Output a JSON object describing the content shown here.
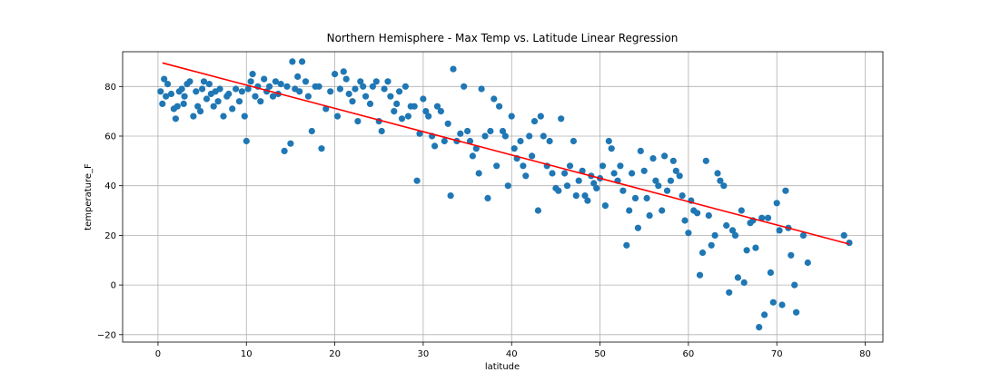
{
  "chart_data": {
    "type": "scatter",
    "title": "Northern Hemisphere - Max Temp vs. Latitude Linear Regression",
    "xlabel": "latitude",
    "ylabel": "temperature_F",
    "xlim": [
      -4,
      82
    ],
    "ylim": [
      -23,
      94
    ],
    "xticks": [
      0,
      10,
      20,
      30,
      40,
      50,
      60,
      70,
      80
    ],
    "yticks": [
      -20,
      0,
      20,
      40,
      60,
      80
    ],
    "grid": true,
    "colors": {
      "points": "#1f77b4",
      "regression": "#ff0000"
    },
    "regression_line": {
      "x": [
        0.5,
        78.2
      ],
      "y": [
        89.5,
        16.5
      ]
    },
    "series": [
      {
        "points": [
          [
            0.3,
            78
          ],
          [
            0.5,
            73
          ],
          [
            0.7,
            83
          ],
          [
            0.9,
            76
          ],
          [
            1.1,
            81
          ],
          [
            1.5,
            77
          ],
          [
            1.8,
            71
          ],
          [
            2.0,
            67
          ],
          [
            2.2,
            72
          ],
          [
            2.4,
            78
          ],
          [
            2.7,
            79
          ],
          [
            2.9,
            73
          ],
          [
            3.0,
            76
          ],
          [
            3.3,
            81
          ],
          [
            3.6,
            82
          ],
          [
            4.0,
            68
          ],
          [
            4.3,
            78
          ],
          [
            4.5,
            72
          ],
          [
            4.8,
            70
          ],
          [
            5.0,
            79
          ],
          [
            5.2,
            82
          ],
          [
            5.5,
            75
          ],
          [
            5.8,
            81
          ],
          [
            6.0,
            77
          ],
          [
            6.3,
            72
          ],
          [
            6.5,
            78
          ],
          [
            6.8,
            74
          ],
          [
            7.0,
            79
          ],
          [
            7.4,
            68
          ],
          [
            7.8,
            76
          ],
          [
            8.0,
            77
          ],
          [
            8.4,
            71
          ],
          [
            8.8,
            79
          ],
          [
            9.2,
            74
          ],
          [
            9.5,
            78
          ],
          [
            9.8,
            68
          ],
          [
            10.0,
            58
          ],
          [
            10.2,
            79
          ],
          [
            10.5,
            82
          ],
          [
            10.7,
            85
          ],
          [
            11.0,
            76
          ],
          [
            11.3,
            80
          ],
          [
            11.6,
            74
          ],
          [
            12.0,
            83
          ],
          [
            12.3,
            78
          ],
          [
            12.6,
            80
          ],
          [
            13.0,
            76
          ],
          [
            13.3,
            82
          ],
          [
            13.6,
            77
          ],
          [
            13.9,
            81
          ],
          [
            14.3,
            54
          ],
          [
            14.6,
            80
          ],
          [
            15.0,
            57
          ],
          [
            15.2,
            90
          ],
          [
            15.5,
            79
          ],
          [
            15.8,
            84
          ],
          [
            16.0,
            78
          ],
          [
            16.3,
            90
          ],
          [
            16.7,
            82
          ],
          [
            17.0,
            76
          ],
          [
            17.4,
            62
          ],
          [
            17.8,
            80
          ],
          [
            18.2,
            80
          ],
          [
            18.5,
            55
          ],
          [
            19.0,
            71
          ],
          [
            19.5,
            78
          ],
          [
            20.0,
            85
          ],
          [
            20.3,
            68
          ],
          [
            20.6,
            79
          ],
          [
            21.0,
            86
          ],
          [
            21.3,
            83
          ],
          [
            21.6,
            77
          ],
          [
            22.0,
            74
          ],
          [
            22.3,
            79
          ],
          [
            22.6,
            66
          ],
          [
            22.9,
            82
          ],
          [
            23.2,
            80
          ],
          [
            23.5,
            76
          ],
          [
            24.0,
            73
          ],
          [
            24.3,
            80
          ],
          [
            24.7,
            82
          ],
          [
            25.0,
            66
          ],
          [
            25.3,
            62
          ],
          [
            25.6,
            79
          ],
          [
            26.0,
            82
          ],
          [
            26.3,
            76
          ],
          [
            26.7,
            70
          ],
          [
            27.0,
            73
          ],
          [
            27.3,
            78
          ],
          [
            27.6,
            67
          ],
          [
            28.0,
            80
          ],
          [
            28.3,
            68
          ],
          [
            28.6,
            72
          ],
          [
            29.0,
            72
          ],
          [
            29.3,
            42
          ],
          [
            29.6,
            61
          ],
          [
            30.0,
            75
          ],
          [
            30.3,
            70
          ],
          [
            30.6,
            68
          ],
          [
            31.0,
            60
          ],
          [
            31.3,
            56
          ],
          [
            31.6,
            72
          ],
          [
            32.0,
            70
          ],
          [
            32.4,
            58
          ],
          [
            32.8,
            65
          ],
          [
            33.1,
            36
          ],
          [
            33.4,
            87
          ],
          [
            33.8,
            58
          ],
          [
            34.2,
            61
          ],
          [
            34.6,
            80
          ],
          [
            35.0,
            62
          ],
          [
            35.3,
            58
          ],
          [
            35.6,
            52
          ],
          [
            36.0,
            55
          ],
          [
            36.3,
            45
          ],
          [
            36.6,
            79
          ],
          [
            37.0,
            60
          ],
          [
            37.3,
            35
          ],
          [
            37.6,
            62
          ],
          [
            38.0,
            75
          ],
          [
            38.3,
            48
          ],
          [
            38.6,
            72
          ],
          [
            39.0,
            62
          ],
          [
            39.3,
            60
          ],
          [
            39.6,
            40
          ],
          [
            40.0,
            68
          ],
          [
            40.3,
            55
          ],
          [
            40.6,
            51
          ],
          [
            41.0,
            58
          ],
          [
            41.3,
            48
          ],
          [
            41.6,
            44
          ],
          [
            42.0,
            60
          ],
          [
            42.3,
            52
          ],
          [
            42.6,
            66
          ],
          [
            43.0,
            30
          ],
          [
            43.3,
            68
          ],
          [
            43.6,
            60
          ],
          [
            44.0,
            48
          ],
          [
            44.3,
            58
          ],
          [
            44.6,
            45
          ],
          [
            45.0,
            39
          ],
          [
            45.3,
            38
          ],
          [
            45.6,
            67
          ],
          [
            46.0,
            45
          ],
          [
            46.3,
            40
          ],
          [
            46.6,
            48
          ],
          [
            47.0,
            58
          ],
          [
            47.3,
            36
          ],
          [
            47.6,
            42
          ],
          [
            48.0,
            46
          ],
          [
            48.3,
            36
          ],
          [
            48.6,
            34
          ],
          [
            49.0,
            44
          ],
          [
            49.3,
            41
          ],
          [
            49.6,
            39
          ],
          [
            50.0,
            43
          ],
          [
            50.3,
            48
          ],
          [
            50.6,
            32
          ],
          [
            51.0,
            58
          ],
          [
            51.3,
            55
          ],
          [
            51.6,
            45
          ],
          [
            52.0,
            42
          ],
          [
            52.3,
            48
          ],
          [
            52.6,
            38
          ],
          [
            53.0,
            16
          ],
          [
            53.3,
            30
          ],
          [
            53.6,
            45
          ],
          [
            54.0,
            35
          ],
          [
            54.3,
            23
          ],
          [
            54.6,
            54
          ],
          [
            55.0,
            46
          ],
          [
            55.3,
            35
          ],
          [
            55.6,
            28
          ],
          [
            56.0,
            51
          ],
          [
            56.3,
            42
          ],
          [
            56.6,
            40
          ],
          [
            57.0,
            30
          ],
          [
            57.3,
            52
          ],
          [
            57.6,
            38
          ],
          [
            58.0,
            42
          ],
          [
            58.3,
            50
          ],
          [
            58.6,
            46
          ],
          [
            59.0,
            44
          ],
          [
            59.3,
            36
          ],
          [
            59.6,
            26
          ],
          [
            60.0,
            21
          ],
          [
            60.3,
            34
          ],
          [
            60.6,
            30
          ],
          [
            61.0,
            29
          ],
          [
            61.3,
            4
          ],
          [
            61.6,
            13
          ],
          [
            62.0,
            50
          ],
          [
            62.3,
            28
          ],
          [
            62.6,
            16
          ],
          [
            63.0,
            20
          ],
          [
            63.3,
            45
          ],
          [
            63.6,
            42
          ],
          [
            64.0,
            40
          ],
          [
            64.3,
            24
          ],
          [
            64.6,
            -3
          ],
          [
            65.0,
            22
          ],
          [
            65.3,
            20
          ],
          [
            65.6,
            3
          ],
          [
            66.0,
            30
          ],
          [
            66.3,
            1
          ],
          [
            66.6,
            14
          ],
          [
            67.0,
            25
          ],
          [
            67.3,
            26
          ],
          [
            67.6,
            15
          ],
          [
            68.0,
            -17
          ],
          [
            68.3,
            27
          ],
          [
            68.6,
            -12
          ],
          [
            69.0,
            27
          ],
          [
            69.3,
            5
          ],
          [
            69.6,
            -7
          ],
          [
            70.0,
            33
          ],
          [
            70.3,
            22
          ],
          [
            70.6,
            -8
          ],
          [
            71.0,
            38
          ],
          [
            71.3,
            23
          ],
          [
            71.6,
            12
          ],
          [
            72.0,
            0
          ],
          [
            72.2,
            -11
          ],
          [
            73.0,
            20
          ],
          [
            73.5,
            9
          ],
          [
            77.6,
            20
          ],
          [
            78.2,
            17
          ]
        ]
      }
    ]
  }
}
